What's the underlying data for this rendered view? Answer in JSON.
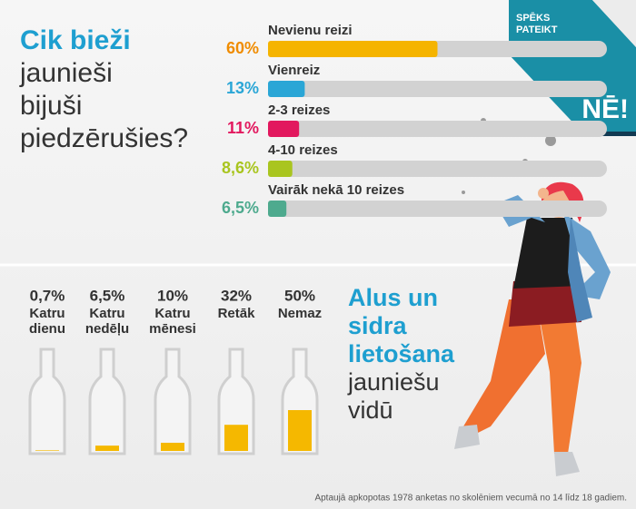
{
  "chart_data": [
    {
      "type": "bar",
      "title": [
        "Cik bieži"
      ],
      "subtitle": [
        "jaunieši",
        "bijuši",
        "piedzērušies?"
      ],
      "categories": [
        "Nevienu reizi",
        "Vienreiz",
        "2-3 reizes",
        "4-10 reizes",
        "Vairāk nekā 10 reizes"
      ],
      "values": [
        60,
        13,
        11,
        8.6,
        6.5
      ],
      "value_labels": [
        "60%",
        "13%",
        "11%",
        "8,6%",
        "6,5%"
      ],
      "colors": [
        "#f5b400",
        "#2aa6d6",
        "#e2185e",
        "#a9c51f",
        "#4eaa8e"
      ],
      "label_colors": [
        "#f08c00",
        "#2aa6d6",
        "#e2185e",
        "#a9c51f",
        "#4eaa8e"
      ],
      "xlim": [
        0,
        120
      ]
    },
    {
      "type": "bottle",
      "title": [
        "Alus un",
        "sidra",
        "lietošana"
      ],
      "subtitle": [
        "jauniešu",
        "vidū"
      ],
      "categories": [
        "Katru dienu",
        "Katru nedēļu",
        "Katru mēnesi",
        "Retāk",
        "Nemaz"
      ],
      "values": [
        0.7,
        6.5,
        10,
        32,
        50
      ],
      "value_labels": [
        "0,7%",
        "6,5%",
        "10%",
        "32%",
        "50%"
      ],
      "color": "#f5b800",
      "ylim": [
        0,
        100
      ]
    }
  ],
  "logo": {
    "line1": "SPĒKS",
    "line2": "PATEIKT",
    "mark": "NĒ!"
  },
  "note": "Aptaujā apkopotas 1978 anketas no skolēniem vecumā no 14 līdz 18 gadiem."
}
